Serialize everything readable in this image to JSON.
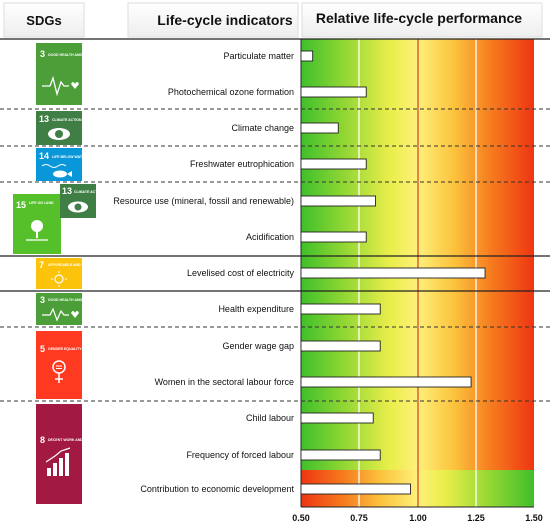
{
  "headers": {
    "sdgs": "SDGs",
    "indicators": "Life-cycle indicators",
    "performance": "Relative life-cycle performance"
  },
  "chart_data": {
    "type": "bar",
    "orientation": "horizontal",
    "xlim": [
      0.5,
      1.5
    ],
    "xticks": [
      "0.50",
      "0.75",
      "1.00",
      "1.25",
      "1.50"
    ],
    "reference_line": 1.0,
    "background": "green to yellow to red gradient; last row reversed (red to green)",
    "categories": [
      "Particulate matter",
      "Photochemical ozone formation",
      "Climate change",
      "Freshwater eutrophication",
      "Resource use (mineral, fossil and renewable)",
      "Acidification",
      "Levelised cost of electricity",
      "Health expenditure",
      "Gender wage gap",
      "Women in the sectoral labour force",
      "Child labour",
      "Frequency of forced labour",
      "Contribution to economic development"
    ],
    "values": [
      0.55,
      0.78,
      0.66,
      0.78,
      0.82,
      0.78,
      1.29,
      0.84,
      0.84,
      1.23,
      0.81,
      0.84,
      0.97
    ]
  },
  "sdg_icons": [
    {
      "number": "3",
      "text": "GOOD HEALTH AND WELL-BEING",
      "color": "#4C9F38",
      "icon": "heartbeat-icon"
    },
    {
      "number": "13",
      "text": "CLIMATE ACTION",
      "color": "#3F7E44",
      "icon": "eye-earth-icon"
    },
    {
      "number": "14",
      "text": "LIFE BELOW WATER",
      "color": "#0A97D9",
      "icon": "fish-icon"
    },
    {
      "number": "15",
      "text": "LIFE ON LAND",
      "color": "#56C02B",
      "icon": "tree-icon"
    },
    {
      "number": "13",
      "text": "CLIMATE ACTION",
      "color": "#3F7E44",
      "icon": "eye-earth-icon"
    },
    {
      "number": "7",
      "text": "AFFORDABLE AND CLEAN ENERGY",
      "color": "#FCC30B",
      "icon": "sun-icon"
    },
    {
      "number": "3",
      "text": "GOOD HEALTH AND WELL-BEING",
      "color": "#4C9F38",
      "icon": "heartbeat-icon"
    },
    {
      "number": "5",
      "text": "GENDER EQUALITY",
      "color": "#FF3A21",
      "icon": "gender-icon"
    },
    {
      "number": "8",
      "text": "DECENT WORK AND ECONOMIC GROWTH",
      "color": "#A21942",
      "icon": "growth-chart-icon"
    }
  ]
}
